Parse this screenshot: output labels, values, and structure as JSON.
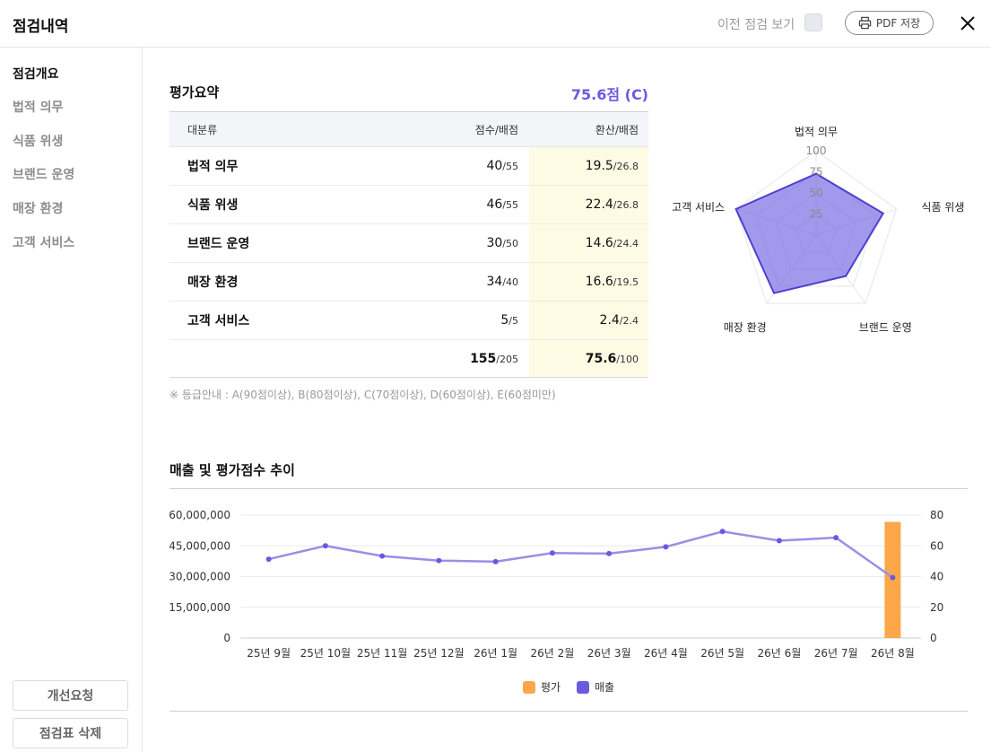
{
  "header": {
    "title": "점검내역",
    "prev_label": "이전 점검 보기",
    "pdf_label": "PDF 저장"
  },
  "sidebar": {
    "items": [
      {
        "label": "점검개요",
        "active": true
      },
      {
        "label": "법적 의무",
        "active": false
      },
      {
        "label": "식품 위생",
        "active": false
      },
      {
        "label": "브랜드 운영",
        "active": false
      },
      {
        "label": "매장 환경",
        "active": false
      },
      {
        "label": "고객 서비스",
        "active": false
      }
    ],
    "request_button": "개선요청",
    "delete_button": "점검표 삭제"
  },
  "summary": {
    "title": "평가요약",
    "total": "75.6점 (C)",
    "columns": [
      "대분류",
      "점수/배점",
      "환산/배점"
    ],
    "rows": [
      {
        "category": "법적 의무",
        "score": "40",
        "score_max": "/55",
        "conv": "19.5",
        "conv_max": "/26.8"
      },
      {
        "category": "식품 위생",
        "score": "46",
        "score_max": "/55",
        "conv": "22.4",
        "conv_max": "/26.8"
      },
      {
        "category": "브랜드 운영",
        "score": "30",
        "score_max": "/50",
        "conv": "14.6",
        "conv_max": "/24.4"
      },
      {
        "category": "매장 환경",
        "score": "34",
        "score_max": "/40",
        "conv": "16.6",
        "conv_max": "/19.5"
      },
      {
        "category": "고객 서비스",
        "score": "5",
        "score_max": "/5",
        "conv": "2.4",
        "conv_max": "/2.4"
      }
    ],
    "total_row": {
      "score": "155",
      "score_max": "/205",
      "conv": "75.6",
      "conv_max": "/100"
    },
    "grade_note": "※ 등급안내 : A(90점이상), B(80점이상), C(70점이상), D(60점이상), E(60점미만)"
  },
  "trend": {
    "title": "매출 및 평가점수 추이"
  },
  "chart_data": [
    {
      "type": "radar",
      "axes": [
        "법적 의무",
        "식품 위생",
        "브랜드 운영",
        "매장 환경",
        "고객 서비스"
      ],
      "values": [
        72.7,
        83.6,
        60,
        85,
        100
      ],
      "rlim": [
        0,
        100
      ],
      "ticks": [
        25,
        50,
        75,
        100
      ],
      "color": "#6a5ae0"
    },
    {
      "type": "bar+line",
      "categories": [
        "25년 9월",
        "25년 10월",
        "25년 11월",
        "25년 12월",
        "26년 1월",
        "26년 2월",
        "26년 3월",
        "26년 4월",
        "26년 5월",
        "26년 6월",
        "26년 7월",
        "26년 8월"
      ],
      "series": [
        {
          "name": "평가",
          "type": "bar",
          "axis": "right",
          "color": "#fca74a",
          "values": [
            0,
            0,
            0,
            0,
            0,
            0,
            0,
            0,
            0,
            0,
            0,
            75.6
          ]
        },
        {
          "name": "매출",
          "type": "line",
          "axis": "left",
          "color": "#6a5ae0",
          "values": [
            38500000,
            45000000,
            40000000,
            37800000,
            37300000,
            41500000,
            41200000,
            44500000,
            52000000,
            47500000,
            49000000,
            29500000
          ]
        }
      ],
      "y_left": {
        "lim": [
          0,
          60000000
        ],
        "ticks": [
          "0",
          "15,000,000",
          "30,000,000",
          "45,000,000",
          "60,000,000"
        ]
      },
      "y_right": {
        "lim": [
          0,
          80
        ],
        "ticks": [
          "0",
          "20",
          "40",
          "60",
          "80"
        ]
      },
      "legend": "bottom-center",
      "grid": true
    }
  ]
}
